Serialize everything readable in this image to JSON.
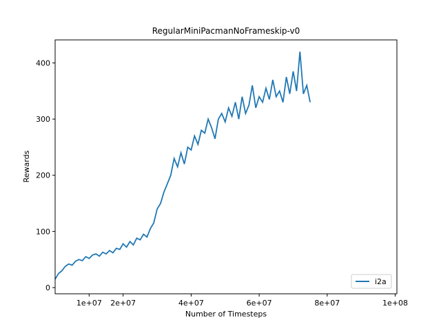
{
  "chart_data": {
    "type": "line",
    "title": "RegularMiniPacmanNoFrameskip-v0",
    "xlabel": "Number of Timesteps",
    "ylabel": "Rewards",
    "x": [
      0,
      1000000,
      2000000,
      3000000,
      4000000,
      5000000,
      6000000,
      7000000,
      8000000,
      9000000,
      10000000,
      11000000,
      12000000,
      13000000,
      14000000,
      15000000,
      16000000,
      17000000,
      18000000,
      19000000,
      20000000,
      21000000,
      22000000,
      23000000,
      24000000,
      25000000,
      26000000,
      27000000,
      28000000,
      29000000,
      30000000,
      31000000,
      32000000,
      33000000,
      34000000,
      35000000,
      36000000,
      37000000,
      38000000,
      39000000,
      40000000,
      41000000,
      42000000,
      43000000,
      44000000,
      45000000,
      46000000,
      47000000,
      48000000,
      49000000,
      50000000,
      51000000,
      52000000,
      53000000,
      54000000,
      55000000,
      56000000,
      57000000,
      58000000,
      59000000,
      60000000,
      61000000,
      62000000,
      63000000,
      64000000,
      65000000,
      66000000,
      67000000,
      68000000,
      69000000,
      70000000,
      71000000,
      72000000,
      73000000,
      74000000,
      75000000
    ],
    "series": [
      {
        "name": "i2a",
        "color": "#1f77b4",
        "values": [
          15,
          25,
          30,
          38,
          42,
          40,
          47,
          50,
          48,
          55,
          52,
          58,
          60,
          56,
          63,
          60,
          66,
          62,
          70,
          68,
          78,
          72,
          82,
          76,
          88,
          85,
          95,
          90,
          105,
          115,
          140,
          150,
          170,
          185,
          200,
          230,
          215,
          240,
          220,
          250,
          245,
          270,
          255,
          280,
          275,
          300,
          285,
          265,
          300,
          310,
          295,
          320,
          305,
          330,
          300,
          340,
          310,
          325,
          360,
          320,
          340,
          330,
          355,
          335,
          370,
          340,
          350,
          330,
          375,
          345,
          385,
          350,
          420,
          345,
          360,
          330
        ]
      }
    ],
    "xlim": [
      0,
      100500000
    ],
    "ylim": [
      -11,
      441
    ],
    "xticks": [
      {
        "value": 10000000,
        "label": "1e+07"
      },
      {
        "value": 20000000,
        "label": "2e+07"
      },
      {
        "value": 40000000,
        "label": "4e+07"
      },
      {
        "value": 60000000,
        "label": "6e+07"
      },
      {
        "value": 80000000,
        "label": "8e+07"
      },
      {
        "value": 100000000,
        "label": "1e+08"
      }
    ],
    "yticks": [
      0,
      100,
      200,
      300,
      400
    ],
    "legend": "lower right"
  }
}
